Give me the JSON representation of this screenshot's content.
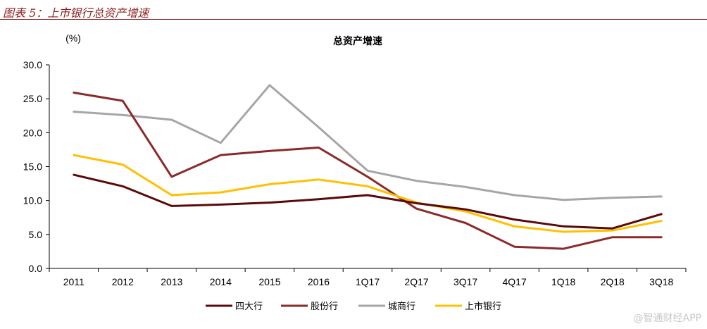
{
  "caption": "图表 5：上市银行总资产增速",
  "watermark": "@智通财经APP",
  "chart_data": {
    "type": "line",
    "title": "总资产增速",
    "ylabel": "(%)",
    "xlabel": "",
    "ylim": [
      0,
      30
    ],
    "yticks": [
      "0.0",
      "5.0",
      "10.0",
      "15.0",
      "20.0",
      "25.0",
      "30.0"
    ],
    "categories": [
      "2011",
      "2012",
      "2013",
      "2014",
      "2015",
      "2016",
      "1Q17",
      "2Q17",
      "3Q17",
      "4Q17",
      "1Q18",
      "2Q18",
      "3Q18"
    ],
    "legend_position": "bottom",
    "series": [
      {
        "name": "四大行",
        "color": "#5a0a0a",
        "values": [
          13.8,
          12.1,
          9.2,
          9.4,
          9.7,
          10.2,
          10.8,
          9.6,
          8.7,
          7.2,
          6.2,
          5.9,
          8.0
        ]
      },
      {
        "name": "股份行",
        "color": "#8b2a2a",
        "values": [
          25.9,
          24.7,
          13.5,
          16.7,
          17.3,
          17.8,
          13.5,
          8.8,
          6.7,
          3.2,
          2.9,
          4.6,
          4.6
        ]
      },
      {
        "name": "城商行",
        "color": "#a6a6a6",
        "values": [
          23.1,
          22.6,
          21.9,
          18.5,
          27.0,
          20.8,
          14.4,
          12.9,
          12.0,
          10.8,
          10.1,
          10.4,
          10.6
        ]
      },
      {
        "name": "上市银行",
        "color": "#ffc000",
        "values": [
          16.7,
          15.3,
          10.8,
          11.2,
          12.4,
          13.1,
          12.1,
          9.7,
          8.4,
          6.2,
          5.4,
          5.6,
          7.0
        ]
      }
    ]
  }
}
